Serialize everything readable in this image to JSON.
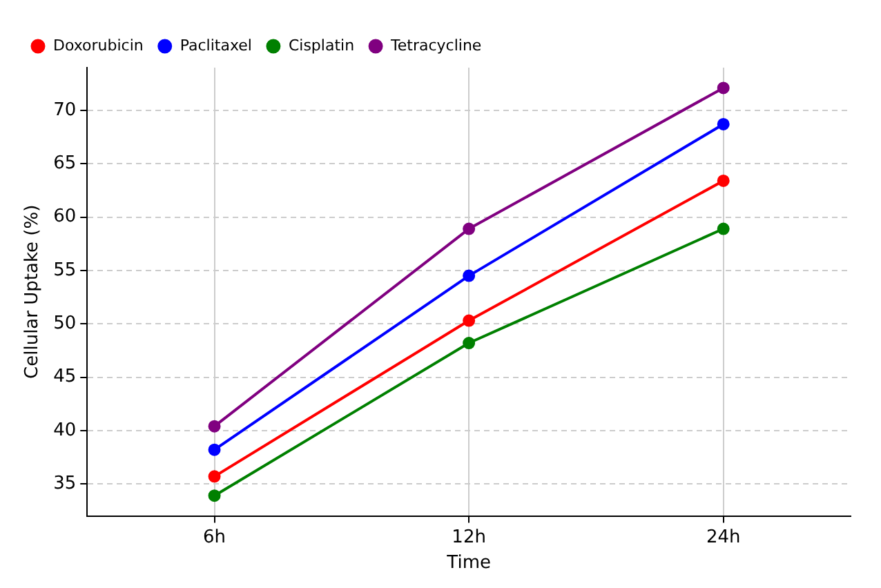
{
  "chart_data": {
    "type": "line",
    "xlabel": "Time",
    "ylabel": "Cellular Uptake (%)",
    "categories": [
      "6h",
      "12h",
      "24h"
    ],
    "series": [
      {
        "name": "Doxorubicin",
        "color": "#ff0000",
        "values": [
          35.7,
          50.3,
          63.4
        ]
      },
      {
        "name": "Paclitaxel",
        "color": "#0000ff",
        "values": [
          38.2,
          54.5,
          68.7
        ]
      },
      {
        "name": "Cisplatin",
        "color": "#008000",
        "values": [
          33.9,
          48.2,
          58.9
        ]
      },
      {
        "name": "Tetracycline",
        "color": "#800080",
        "values": [
          40.4,
          58.9,
          72.1
        ]
      }
    ],
    "ylim": [
      32,
      74
    ],
    "yticks": [
      35,
      40,
      45,
      50,
      55,
      60,
      65,
      70
    ],
    "grid": true,
    "legend": "top left",
    "marker": "circle",
    "line_style": "solid"
  }
}
